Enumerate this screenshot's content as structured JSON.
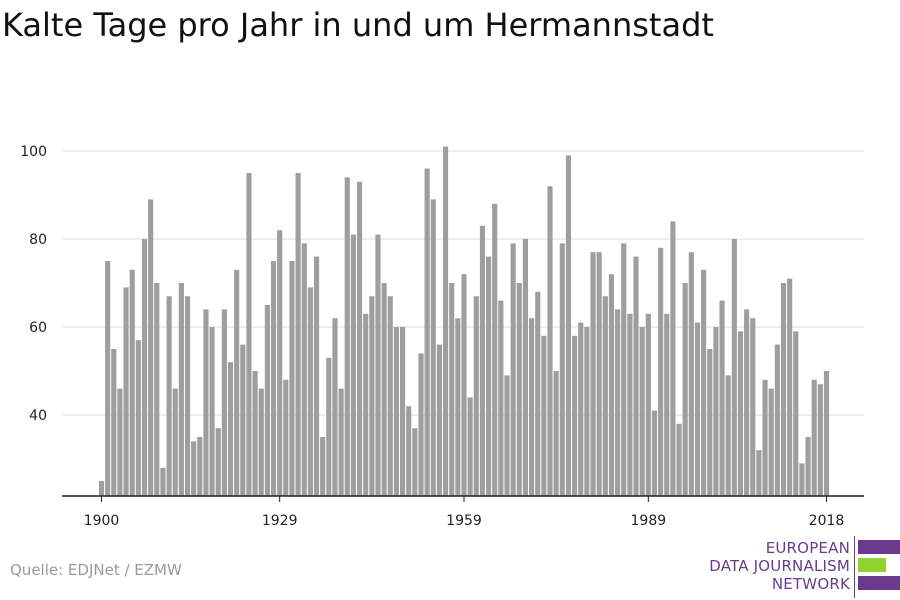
{
  "chart_data": {
    "type": "bar",
    "title": "Kalte Tage pro Jahr in und um Hermannstadt",
    "xlabel": "",
    "ylabel": "",
    "x_start": 1900,
    "x_end": 2018,
    "x_ticks": [
      "1900",
      "1929",
      "1959",
      "1989",
      "2018"
    ],
    "y_ticks": [
      "40",
      "60",
      "80",
      "100"
    ],
    "ylim": [
      22,
      104
    ],
    "grid": true,
    "legend": "none",
    "bar_color": "#9e9e9e",
    "values": [
      25,
      75,
      55,
      46,
      69,
      73,
      57,
      80,
      89,
      70,
      28,
      67,
      46,
      70,
      67,
      34,
      35,
      64,
      60,
      37,
      64,
      52,
      73,
      56,
      95,
      50,
      46,
      65,
      75,
      82,
      48,
      75,
      95,
      79,
      69,
      76,
      35,
      53,
      62,
      46,
      94,
      81,
      93,
      63,
      67,
      81,
      70,
      67,
      60,
      60,
      42,
      37,
      54,
      96,
      89,
      56,
      101,
      70,
      62,
      72,
      44,
      67,
      83,
      76,
      88,
      66,
      49,
      79,
      70,
      80,
      62,
      68,
      58,
      92,
      50,
      79,
      99,
      58,
      61,
      60,
      77,
      77,
      67,
      72,
      64,
      79,
      63,
      76,
      60,
      63,
      41,
      78,
      63,
      84,
      38,
      70,
      77,
      61,
      73,
      55,
      60,
      66,
      49,
      80,
      59,
      64,
      62,
      32,
      48,
      46,
      56,
      70,
      71,
      59,
      29,
      35,
      48,
      47,
      50
    ]
  },
  "source": "Quelle: EDJNet / EZMW",
  "logo": {
    "line1": "EUROPEAN",
    "line2": "DATA JOURNALISM",
    "line3": "NETWORK",
    "color_purple": "#6b3a8c",
    "color_green": "#8fd331"
  }
}
